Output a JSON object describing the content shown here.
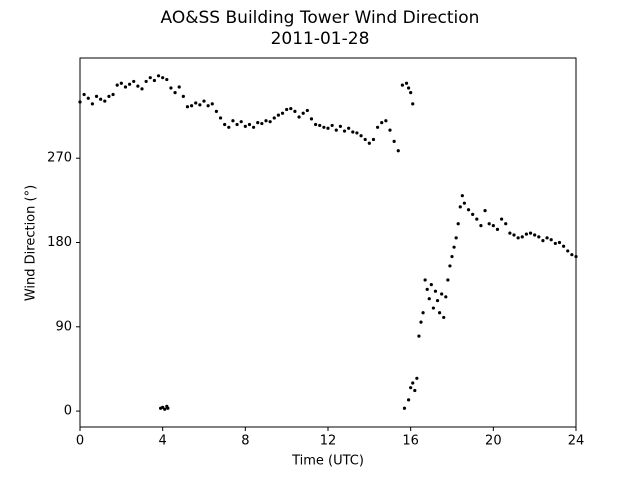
{
  "chart_data": {
    "type": "scatter",
    "title": "AO&SS Building Tower Wind Direction",
    "subtitle": "2011-01-28",
    "x_label": "Time (UTC)",
    "y_label": "Wind Direction (°)",
    "color": "#000000",
    "xlim": [
      0,
      24
    ],
    "xticks": [
      0,
      4,
      8,
      12,
      16,
      20,
      24
    ],
    "ylim": [
      -17,
      377
    ],
    "yticks": [
      0,
      90,
      180,
      270
    ],
    "x": [
      0.0,
      0.2,
      0.4,
      0.6,
      0.8,
      1.0,
      1.2,
      1.4,
      1.6,
      1.8,
      2.0,
      2.2,
      2.4,
      2.6,
      2.8,
      3.0,
      3.2,
      3.4,
      3.6,
      3.8,
      3.9,
      4.0,
      4.0,
      4.1,
      4.2,
      4.2,
      4.25,
      4.4,
      4.6,
      4.8,
      5.0,
      5.2,
      5.4,
      5.6,
      5.8,
      6.0,
      6.2,
      6.4,
      6.6,
      6.8,
      7.0,
      7.2,
      7.4,
      7.6,
      7.8,
      8.0,
      8.2,
      8.4,
      8.6,
      8.8,
      9.0,
      9.2,
      9.4,
      9.6,
      9.8,
      10.0,
      10.2,
      10.4,
      10.6,
      10.8,
      11.0,
      11.2,
      11.4,
      11.6,
      11.8,
      12.0,
      12.2,
      12.4,
      12.6,
      12.8,
      13.0,
      13.2,
      13.4,
      13.6,
      13.8,
      14.0,
      14.2,
      14.4,
      14.6,
      14.8,
      15.0,
      15.2,
      15.4,
      15.6,
      15.7,
      15.8,
      15.9,
      15.9,
      16.0,
      16.0,
      16.1,
      16.1,
      16.2,
      16.3,
      16.4,
      16.5,
      16.6,
      16.7,
      16.8,
      16.9,
      17.0,
      17.1,
      17.2,
      17.3,
      17.4,
      17.5,
      17.6,
      17.7,
      17.8,
      17.9,
      18.0,
      18.1,
      18.2,
      18.3,
      18.4,
      18.5,
      18.6,
      18.8,
      19.0,
      19.2,
      19.4,
      19.6,
      19.8,
      20.0,
      20.2,
      20.4,
      20.6,
      20.8,
      21.0,
      21.2,
      21.4,
      21.6,
      21.8,
      22.0,
      22.2,
      22.4,
      22.6,
      22.8,
      23.0,
      23.2,
      23.4,
      23.6,
      23.8,
      24.0
    ],
    "values": [
      330,
      338,
      334,
      328,
      336,
      333,
      331,
      336,
      338,
      348,
      350,
      346,
      349,
      352,
      347,
      344,
      352,
      356,
      353,
      358,
      3,
      356,
      4,
      2,
      354,
      5,
      3,
      345,
      340,
      346,
      336,
      325,
      326,
      329,
      327,
      331,
      326,
      328,
      320,
      313,
      306,
      303,
      310,
      306,
      309,
      304,
      306,
      303,
      308,
      307,
      310,
      309,
      313,
      316,
      318,
      322,
      323,
      320,
      314,
      318,
      321,
      312,
      306,
      305,
      303,
      302,
      305,
      300,
      304,
      299,
      302,
      298,
      297,
      294,
      290,
      286,
      290,
      303,
      308,
      310,
      300,
      288,
      278,
      348,
      3,
      350,
      345,
      12,
      340,
      25,
      328,
      30,
      22,
      35,
      80,
      95,
      105,
      140,
      130,
      120,
      135,
      110,
      128,
      118,
      105,
      125,
      100,
      122,
      140,
      155,
      165,
      175,
      185,
      200,
      218,
      230,
      222,
      215,
      210,
      205,
      198,
      214,
      200,
      198,
      194,
      205,
      200,
      190,
      188,
      185,
      186,
      189,
      190,
      188,
      186,
      182,
      185,
      183,
      179,
      180,
      176,
      171,
      167,
      165
    ]
  }
}
